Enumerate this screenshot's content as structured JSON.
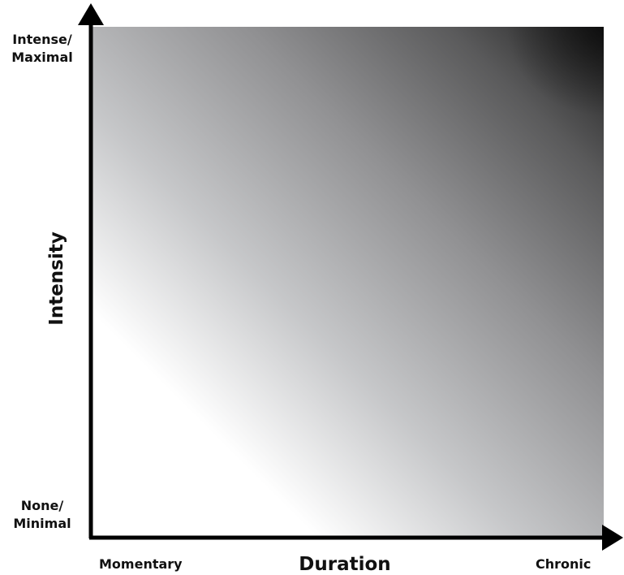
{
  "diagram": {
    "y_axis": {
      "title": "Intensity",
      "top_label": [
        "Intense/",
        "Maximal"
      ],
      "bottom_label": [
        "None/",
        "Minimal"
      ]
    },
    "x_axis": {
      "title": "Duration",
      "left_label": "Momentary",
      "right_label": "Chronic"
    },
    "colors": {
      "low": "#ffffff",
      "high": "#000000",
      "axis": "#000000"
    }
  }
}
